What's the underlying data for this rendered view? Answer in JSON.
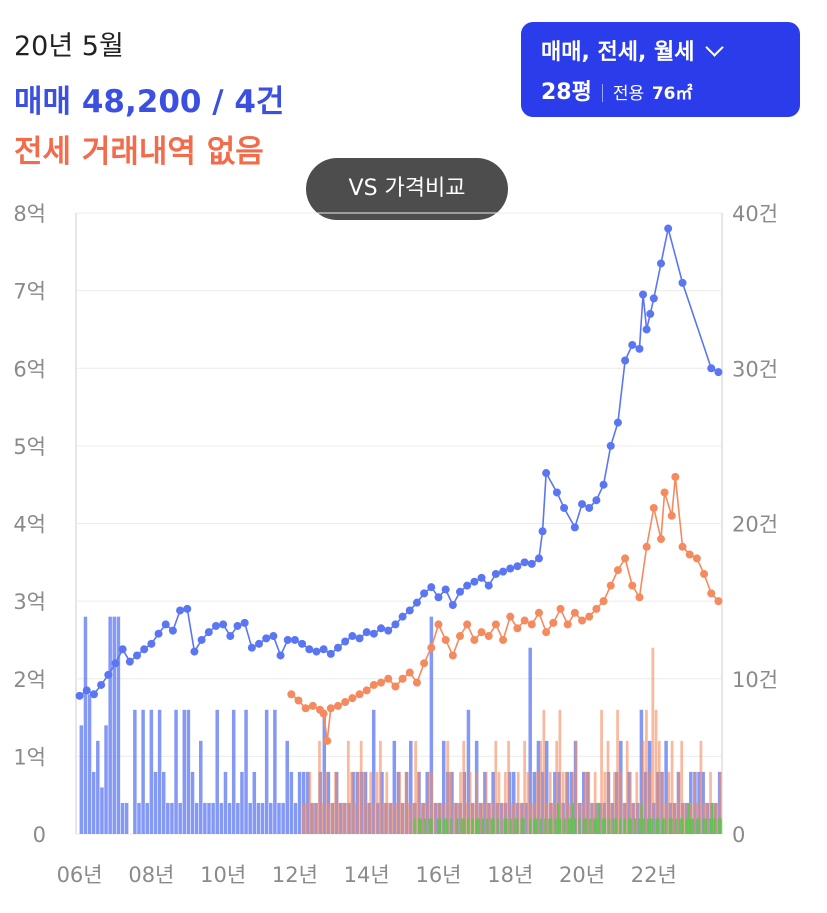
{
  "header": {
    "period": "20년 5월",
    "sale_summary": "매매 48,200 / 4건",
    "jeonse_summary": "전세 거래내역 없음"
  },
  "selector": {
    "type_label": "매매, 전세, 월세",
    "size_label": "28평",
    "area_label": "전용",
    "area_value": "76㎡"
  },
  "vs_button": "VS 가격비교",
  "colors": {
    "sale": "#5b76f2",
    "jeonse": "#f58a5f",
    "monthly": "#5cc44c",
    "button": "#2b3dea"
  },
  "chart_data": {
    "type": "line",
    "x_unit": "year",
    "xlim": [
      2005.9,
      2023.9
    ],
    "ylim": [
      0,
      8
    ],
    "y2lim": [
      0,
      40
    ],
    "y_ticks": [
      "8억",
      "7억",
      "6억",
      "5억",
      "4억",
      "3억",
      "2억",
      "1억",
      "0"
    ],
    "y2_ticks": [
      "40건",
      "30건",
      "20건",
      "10건",
      "0"
    ],
    "x_ticks": [
      "06년",
      "08년",
      "10년",
      "12년",
      "14년",
      "16년",
      "18년",
      "20년",
      "22년"
    ],
    "series": [
      {
        "kind": "sale_price",
        "points": [
          [
            2006.0,
            1.78
          ],
          [
            2006.2,
            1.85
          ],
          [
            2006.4,
            1.8
          ],
          [
            2006.6,
            1.92
          ],
          [
            2006.8,
            2.05
          ],
          [
            2007.0,
            2.2
          ],
          [
            2007.2,
            2.38
          ],
          [
            2007.4,
            2.22
          ],
          [
            2007.6,
            2.3
          ],
          [
            2007.8,
            2.38
          ],
          [
            2008.0,
            2.45
          ],
          [
            2008.2,
            2.58
          ],
          [
            2008.4,
            2.7
          ],
          [
            2008.6,
            2.62
          ],
          [
            2008.8,
            2.88
          ],
          [
            2009.0,
            2.9
          ],
          [
            2009.2,
            2.35
          ],
          [
            2009.4,
            2.5
          ],
          [
            2009.6,
            2.6
          ],
          [
            2009.8,
            2.68
          ],
          [
            2010.0,
            2.7
          ],
          [
            2010.2,
            2.55
          ],
          [
            2010.4,
            2.68
          ],
          [
            2010.6,
            2.72
          ],
          [
            2010.8,
            2.4
          ],
          [
            2011.0,
            2.45
          ],
          [
            2011.2,
            2.52
          ],
          [
            2011.4,
            2.55
          ],
          [
            2011.6,
            2.3
          ],
          [
            2011.8,
            2.5
          ],
          [
            2012.0,
            2.5
          ],
          [
            2012.2,
            2.45
          ],
          [
            2012.4,
            2.38
          ],
          [
            2012.6,
            2.35
          ],
          [
            2012.8,
            2.38
          ],
          [
            2013.0,
            2.32
          ],
          [
            2013.2,
            2.4
          ],
          [
            2013.4,
            2.48
          ],
          [
            2013.6,
            2.55
          ],
          [
            2013.8,
            2.52
          ],
          [
            2014.0,
            2.6
          ],
          [
            2014.2,
            2.58
          ],
          [
            2014.4,
            2.65
          ],
          [
            2014.6,
            2.62
          ],
          [
            2014.8,
            2.7
          ],
          [
            2015.0,
            2.8
          ],
          [
            2015.2,
            2.88
          ],
          [
            2015.4,
            2.98
          ],
          [
            2015.6,
            3.1
          ],
          [
            2015.8,
            3.18
          ],
          [
            2016.0,
            3.05
          ],
          [
            2016.2,
            3.15
          ],
          [
            2016.4,
            2.95
          ],
          [
            2016.6,
            3.12
          ],
          [
            2016.8,
            3.2
          ],
          [
            2017.0,
            3.25
          ],
          [
            2017.2,
            3.3
          ],
          [
            2017.4,
            3.2
          ],
          [
            2017.6,
            3.35
          ],
          [
            2017.8,
            3.38
          ],
          [
            2018.0,
            3.42
          ],
          [
            2018.2,
            3.45
          ],
          [
            2018.4,
            3.5
          ],
          [
            2018.6,
            3.48
          ],
          [
            2018.8,
            3.55
          ],
          [
            2018.9,
            3.9
          ],
          [
            2019.0,
            4.65
          ],
          [
            2019.3,
            4.4
          ],
          [
            2019.5,
            4.2
          ],
          [
            2019.8,
            3.95
          ],
          [
            2020.0,
            4.25
          ],
          [
            2020.2,
            4.2
          ],
          [
            2020.4,
            4.3
          ],
          [
            2020.6,
            4.5
          ],
          [
            2020.8,
            5.0
          ],
          [
            2021.0,
            5.3
          ],
          [
            2021.2,
            6.1
          ],
          [
            2021.4,
            6.3
          ],
          [
            2021.6,
            6.25
          ],
          [
            2021.7,
            6.95
          ],
          [
            2021.8,
            6.5
          ],
          [
            2021.9,
            6.7
          ],
          [
            2022.0,
            6.9
          ],
          [
            2022.2,
            7.35
          ],
          [
            2022.4,
            7.8
          ],
          [
            2022.8,
            7.1
          ],
          [
            2023.6,
            6.0
          ],
          [
            2023.8,
            5.95
          ]
        ]
      },
      {
        "kind": "jeonse_price",
        "points": [
          [
            2011.9,
            1.8
          ],
          [
            2012.1,
            1.72
          ],
          [
            2012.3,
            1.62
          ],
          [
            2012.5,
            1.65
          ],
          [
            2012.7,
            1.6
          ],
          [
            2012.8,
            1.55
          ],
          [
            2012.9,
            1.2
          ],
          [
            2013.0,
            1.62
          ],
          [
            2013.2,
            1.65
          ],
          [
            2013.4,
            1.7
          ],
          [
            2013.6,
            1.75
          ],
          [
            2013.8,
            1.8
          ],
          [
            2014.0,
            1.85
          ],
          [
            2014.2,
            1.92
          ],
          [
            2014.4,
            1.95
          ],
          [
            2014.6,
            2.0
          ],
          [
            2014.8,
            1.9
          ],
          [
            2015.0,
            2.0
          ],
          [
            2015.2,
            2.08
          ],
          [
            2015.4,
            1.95
          ],
          [
            2015.6,
            2.2
          ],
          [
            2015.8,
            2.4
          ],
          [
            2016.0,
            2.7
          ],
          [
            2016.2,
            2.5
          ],
          [
            2016.4,
            2.3
          ],
          [
            2016.6,
            2.55
          ],
          [
            2016.8,
            2.7
          ],
          [
            2017.0,
            2.5
          ],
          [
            2017.2,
            2.6
          ],
          [
            2017.4,
            2.55
          ],
          [
            2017.6,
            2.7
          ],
          [
            2017.8,
            2.5
          ],
          [
            2018.0,
            2.8
          ],
          [
            2018.2,
            2.65
          ],
          [
            2018.4,
            2.75
          ],
          [
            2018.6,
            2.7
          ],
          [
            2018.8,
            2.85
          ],
          [
            2019.0,
            2.6
          ],
          [
            2019.2,
            2.72
          ],
          [
            2019.4,
            2.9
          ],
          [
            2019.6,
            2.7
          ],
          [
            2019.8,
            2.85
          ],
          [
            2020.0,
            2.75
          ],
          [
            2020.2,
            2.8
          ],
          [
            2020.4,
            2.9
          ],
          [
            2020.6,
            3.0
          ],
          [
            2020.8,
            3.2
          ],
          [
            2021.0,
            3.4
          ],
          [
            2021.2,
            3.55
          ],
          [
            2021.4,
            3.2
          ],
          [
            2021.6,
            3.05
          ],
          [
            2021.8,
            3.7
          ],
          [
            2022.0,
            4.2
          ],
          [
            2022.2,
            3.8
          ],
          [
            2022.3,
            4.4
          ],
          [
            2022.5,
            4.1
          ],
          [
            2022.6,
            4.6
          ],
          [
            2022.8,
            3.7
          ],
          [
            2023.0,
            3.6
          ],
          [
            2023.2,
            3.55
          ],
          [
            2023.4,
            3.35
          ],
          [
            2023.6,
            3.1
          ],
          [
            2023.8,
            3.0
          ]
        ]
      },
      {
        "kind": "sale_volume",
        "values": [
          7,
          14,
          9,
          4,
          6,
          3,
          7,
          14,
          14,
          14,
          2,
          2,
          0,
          8,
          2,
          8,
          2,
          8,
          4,
          8,
          4,
          2,
          2,
          8,
          2,
          8,
          8,
          4,
          2,
          6,
          2,
          2,
          2,
          8,
          2,
          4,
          2,
          8,
          2,
          4,
          8,
          2,
          4,
          2,
          2,
          8,
          2,
          8,
          2,
          2,
          6,
          4,
          2,
          4,
          4,
          4,
          2,
          2,
          4,
          8,
          4,
          2,
          4,
          2,
          2,
          2,
          4,
          4,
          4,
          4,
          2,
          8,
          2,
          4,
          2,
          2,
          6,
          4,
          2,
          4,
          6,
          2,
          4,
          2,
          4,
          14,
          2,
          2,
          6,
          4,
          4,
          2,
          2,
          4,
          8,
          2,
          6,
          2,
          4,
          2,
          4,
          2,
          2,
          2,
          4,
          4,
          2,
          2,
          2,
          12,
          4,
          6,
          4,
          6,
          2,
          4,
          4,
          2,
          4,
          4,
          6,
          2,
          4,
          4,
          2,
          2,
          2,
          2,
          4,
          2,
          4,
          6,
          2,
          4,
          2,
          2,
          8,
          4,
          6,
          2,
          4,
          4,
          6,
          2,
          2,
          4,
          2,
          2,
          4,
          4,
          4,
          4,
          2,
          2,
          2,
          4
        ]
      },
      {
        "kind": "jeonse_volume",
        "values": [
          2,
          2,
          4,
          2,
          2,
          6,
          2,
          4,
          2,
          2,
          4,
          2,
          2,
          2,
          6,
          4,
          2,
          4,
          6,
          4,
          2,
          4,
          2,
          4,
          6,
          2,
          4,
          2,
          2,
          2,
          4,
          2,
          4,
          2,
          2,
          6,
          4,
          2,
          2,
          4,
          4,
          2,
          2,
          2,
          2,
          6,
          4,
          2,
          2,
          4,
          6,
          2,
          4,
          2,
          4,
          2,
          2,
          4,
          2,
          2,
          6,
          4,
          2,
          4,
          6,
          2,
          2,
          4,
          2,
          6,
          4,
          2,
          2,
          4,
          6,
          8,
          2,
          4,
          2,
          6,
          8,
          4,
          4,
          2,
          4,
          6,
          2,
          2,
          4,
          4,
          2,
          4,
          2,
          8,
          4,
          6,
          2,
          4,
          8,
          4,
          2,
          6,
          4,
          2,
          4,
          2,
          6,
          8,
          4,
          12,
          8,
          6,
          4,
          2,
          4,
          6,
          2,
          4,
          6,
          2,
          2,
          2,
          4,
          2,
          6,
          2,
          2,
          4,
          2,
          2,
          4
        ]
      },
      {
        "kind": "monthly_volume",
        "values": [
          0,
          0,
          0,
          0,
          0,
          0,
          0,
          0,
          0,
          0,
          0,
          0,
          0,
          0,
          0,
          0,
          0,
          0,
          0,
          0,
          0,
          0,
          0,
          0,
          0,
          0,
          0,
          0,
          0,
          0,
          0,
          0,
          0,
          0,
          0,
          0,
          0,
          0,
          0,
          0,
          0,
          0,
          0,
          0,
          0,
          0,
          0,
          0,
          0,
          0,
          0,
          0,
          1,
          0,
          1,
          1,
          0,
          1,
          0,
          1,
          1,
          0,
          0,
          1,
          1,
          0,
          1,
          1,
          0,
          1,
          0,
          0,
          1,
          0,
          1,
          1,
          0,
          1,
          0,
          1,
          0,
          1,
          1,
          0,
          1,
          0,
          1,
          0,
          1,
          1,
          0,
          1,
          0,
          0,
          1,
          1,
          0,
          1,
          0,
          1,
          1,
          0,
          1,
          1,
          0,
          0,
          1,
          0,
          1,
          1,
          0,
          1,
          0,
          1,
          0,
          1,
          1,
          0,
          1,
          2,
          1,
          0,
          1,
          0,
          1,
          1,
          2,
          1,
          0,
          1,
          0,
          1,
          1,
          0,
          1,
          0,
          1,
          1,
          2,
          0,
          1,
          1,
          0,
          1,
          0,
          1,
          1,
          0,
          1,
          0,
          1,
          0,
          1,
          1,
          0,
          1,
          0,
          1,
          2,
          1,
          0,
          1,
          1,
          1,
          0,
          1,
          1,
          0,
          1,
          1,
          0,
          1,
          1,
          0,
          1,
          0,
          1,
          1,
          0,
          1,
          2,
          1,
          1,
          0,
          1,
          1,
          0,
          1,
          1,
          0,
          1,
          2,
          1,
          0,
          1,
          1
        ]
      }
    ]
  }
}
